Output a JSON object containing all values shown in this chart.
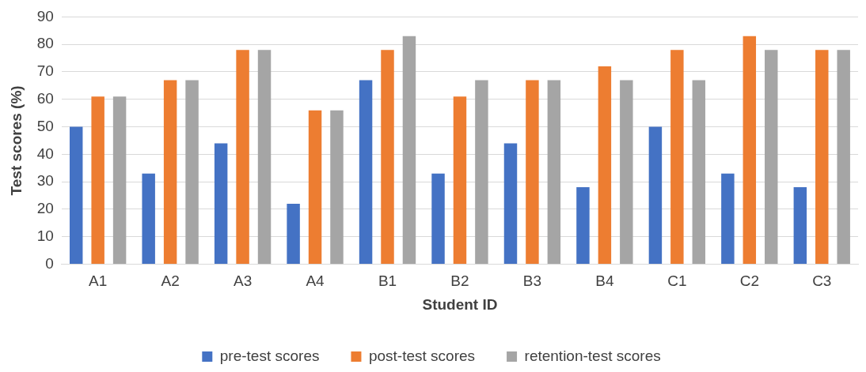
{
  "chart_data": {
    "type": "bar",
    "xlabel": "Student ID",
    "ylabel": "Test scores (%)",
    "categories": [
      "A1",
      "A2",
      "A3",
      "A4",
      "B1",
      "B2",
      "B3",
      "B4",
      "C1",
      "C2",
      "C3"
    ],
    "series": [
      {
        "name": "pre-test scores",
        "color": "#4472c4",
        "values": [
          50,
          33,
          44,
          22,
          67,
          33,
          44,
          28,
          50,
          33,
          28
        ]
      },
      {
        "name": "post-test scores",
        "color": "#ed7d31",
        "values": [
          61,
          67,
          78,
          56,
          78,
          61,
          67,
          72,
          78,
          83,
          78
        ]
      },
      {
        "name": "retention-test scores",
        "color": "#a5a5a5",
        "values": [
          61,
          67,
          78,
          56,
          83,
          67,
          67,
          67,
          67,
          78,
          78
        ]
      }
    ],
    "ylim": [
      0,
      90
    ],
    "yticks": [
      0,
      10,
      20,
      30,
      40,
      50,
      60,
      70,
      80,
      90
    ],
    "grid": "y",
    "legend": "bottom"
  }
}
